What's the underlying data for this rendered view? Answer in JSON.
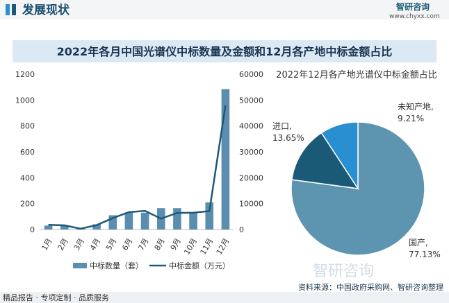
{
  "header": {
    "section": "发展现状",
    "brand": "智研咨询",
    "site": "www.chyxx.com",
    "banner": "2022年各月中国光谱仪中标数量及金额和12月各产地中标金额占比",
    "watermark": "智研咨询"
  },
  "chart_data": [
    {
      "type": "combo",
      "categories": [
        "1月",
        "2月",
        "3月",
        "4月",
        "5月",
        "6月",
        "7月",
        "8月",
        "9月",
        "10月",
        "11月",
        "12月"
      ],
      "series": [
        {
          "name": "中标数量（套）",
          "type": "bar",
          "color": "#5b8eae",
          "values": [
            30,
            30,
            10,
            40,
            110,
            130,
            130,
            165,
            165,
            130,
            210,
            1085
          ]
        },
        {
          "name": "中标金额（万元）",
          "type": "line",
          "axis": "y2",
          "color": "#1d5a78",
          "values": [
            1800,
            1600,
            300,
            1700,
            4400,
            6700,
            7200,
            4200,
            6400,
            6500,
            7100,
            48000
          ]
        }
      ],
      "ylim": [
        0,
        1200
      ],
      "yticks": [
        0,
        200,
        400,
        600,
        800,
        1000,
        1200
      ],
      "y2lim": [
        0,
        60000
      ],
      "y2ticks": [
        0,
        10000,
        20000,
        30000,
        40000,
        50000,
        60000
      ],
      "legend": "bottom"
    },
    {
      "type": "pie",
      "title": "2022年12月各产地光谱仪中标金额占比",
      "categories": [
        "国产,",
        "进口,",
        "未知产地,"
      ],
      "values": [
        77.13,
        13.65,
        9.21
      ],
      "value_labels": [
        "77.13%",
        "13.65%",
        "9.21%"
      ],
      "colors": [
        "#5d94b0",
        "#1b5a76",
        "#2a8fd0"
      ]
    }
  ],
  "footer": {
    "slogan": "精品报告 · 专项定制 · 品质服务",
    "source": "资料来源：中国政府采购网、智研咨询整理"
  }
}
